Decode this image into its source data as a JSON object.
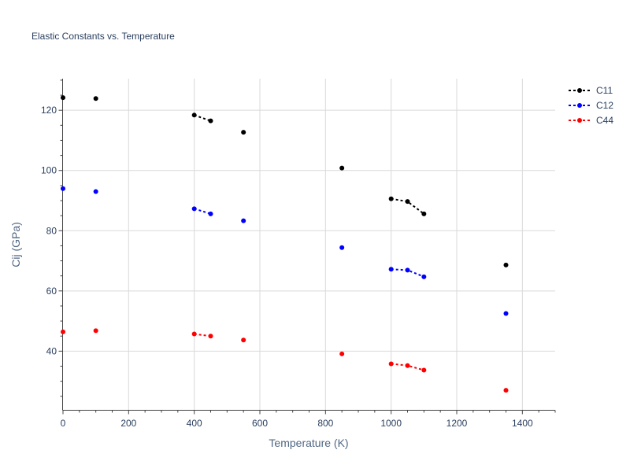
{
  "chart_data": {
    "type": "scatter",
    "title": "Elastic Constants vs. Temperature",
    "xlabel": "Temperature (K)",
    "ylabel": "Cij (GPa)",
    "xlim": [
      0,
      1500
    ],
    "ylim": [
      20.5,
      130.5
    ],
    "x_ticks": [
      0,
      200,
      400,
      600,
      800,
      1000,
      1200,
      1400
    ],
    "y_ticks": [
      40,
      60,
      80,
      100,
      120
    ],
    "x_minor_step": 50,
    "y_minor_step": 5,
    "grid": true,
    "legend_position": "top-right",
    "series": [
      {
        "name": "C11",
        "color": "#000000",
        "points": [
          [
            0,
            124.2
          ],
          [
            100,
            123.9
          ],
          [
            400,
            118.4
          ],
          [
            450,
            116.5
          ],
          [
            550,
            112.7
          ],
          [
            850,
            100.8
          ],
          [
            1000,
            90.6
          ],
          [
            1050,
            89.7
          ],
          [
            1100,
            85.6
          ],
          [
            1350,
            68.6
          ]
        ],
        "connected_segments": [
          [
            [
              400,
              118.4
            ],
            [
              450,
              116.5
            ]
          ],
          [
            [
              1000,
              90.6
            ],
            [
              1050,
              89.7
            ],
            [
              1100,
              85.6
            ]
          ]
        ]
      },
      {
        "name": "C12",
        "color": "#0000ff",
        "points": [
          [
            0,
            94.0
          ],
          [
            100,
            93.0
          ],
          [
            400,
            87.3
          ],
          [
            450,
            85.6
          ],
          [
            550,
            83.3
          ],
          [
            850,
            74.4
          ],
          [
            1000,
            67.2
          ],
          [
            1050,
            66.9
          ],
          [
            1100,
            64.7
          ],
          [
            1350,
            52.5
          ]
        ],
        "connected_segments": [
          [
            [
              400,
              87.3
            ],
            [
              450,
              85.6
            ]
          ],
          [
            [
              1000,
              67.2
            ],
            [
              1050,
              66.9
            ],
            [
              1100,
              64.7
            ]
          ]
        ]
      },
      {
        "name": "C44",
        "color": "#ff0000",
        "points": [
          [
            0,
            46.4
          ],
          [
            100,
            46.8
          ],
          [
            400,
            45.7
          ],
          [
            450,
            45.0
          ],
          [
            550,
            43.7
          ],
          [
            850,
            39.1
          ],
          [
            1000,
            35.8
          ],
          [
            1050,
            35.2
          ],
          [
            1100,
            33.7
          ],
          [
            1350,
            27.0
          ]
        ],
        "connected_segments": [
          [
            [
              400,
              45.7
            ],
            [
              450,
              45.0
            ]
          ],
          [
            [
              1000,
              35.8
            ],
            [
              1050,
              35.2
            ],
            [
              1100,
              33.7
            ]
          ]
        ]
      }
    ]
  }
}
